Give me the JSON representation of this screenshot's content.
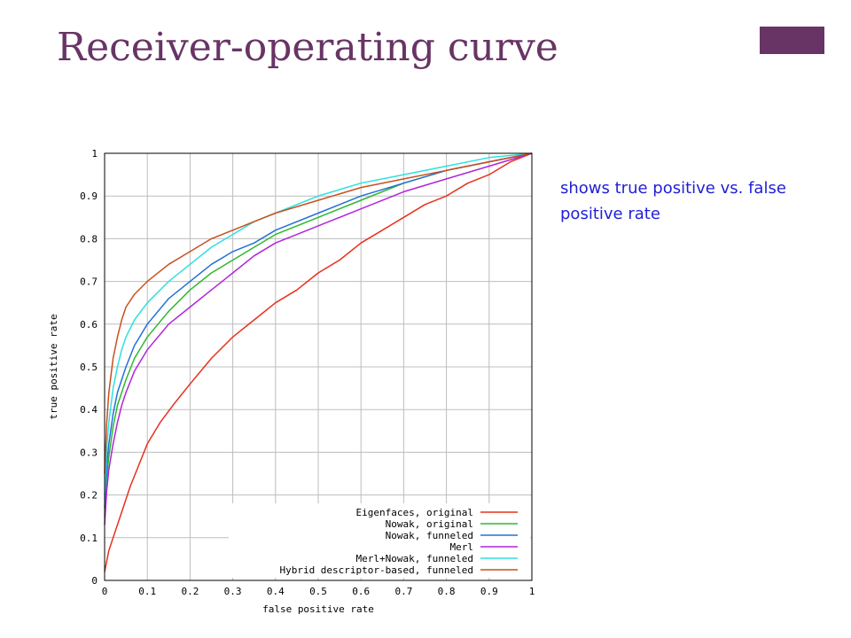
{
  "slide": {
    "title": "Receiver-operating curve",
    "caption": "shows true positive vs. false positive rate",
    "accent_color": "#683465",
    "caption_color": "#1f1fd6"
  },
  "chart_data": {
    "type": "line",
    "title": "",
    "xlabel": "false positive rate",
    "ylabel": "true positive rate",
    "xlim": [
      0,
      1
    ],
    "ylim": [
      0,
      1
    ],
    "grid": true,
    "legend_position": "bottom-right",
    "x_ticks": [
      "0",
      "0.1",
      "0.2",
      "0.3",
      "0.4",
      "0.5",
      "0.6",
      "0.7",
      "0.8",
      "0.9",
      "1"
    ],
    "y_ticks": [
      "0",
      "0.1",
      "0.2",
      "0.3",
      "0.4",
      "0.5",
      "0.6",
      "0.7",
      "0.8",
      "0.9",
      "1"
    ],
    "series": [
      {
        "name": "Eigenfaces, original",
        "color": "#e8301c",
        "points": [
          [
            0,
            0.02
          ],
          [
            0.01,
            0.07
          ],
          [
            0.02,
            0.1
          ],
          [
            0.04,
            0.16
          ],
          [
            0.06,
            0.22
          ],
          [
            0.08,
            0.27
          ],
          [
            0.1,
            0.32
          ],
          [
            0.13,
            0.37
          ],
          [
            0.16,
            0.41
          ],
          [
            0.2,
            0.46
          ],
          [
            0.25,
            0.52
          ],
          [
            0.3,
            0.57
          ],
          [
            0.35,
            0.61
          ],
          [
            0.4,
            0.65
          ],
          [
            0.45,
            0.68
          ],
          [
            0.5,
            0.72
          ],
          [
            0.55,
            0.75
          ],
          [
            0.6,
            0.79
          ],
          [
            0.65,
            0.82
          ],
          [
            0.7,
            0.85
          ],
          [
            0.75,
            0.88
          ],
          [
            0.8,
            0.9
          ],
          [
            0.85,
            0.93
          ],
          [
            0.9,
            0.95
          ],
          [
            0.95,
            0.98
          ],
          [
            1.0,
            1.0
          ]
        ]
      },
      {
        "name": "Nowak, original",
        "color": "#2eb82e",
        "points": [
          [
            0,
            0.15
          ],
          [
            0.005,
            0.24
          ],
          [
            0.01,
            0.29
          ],
          [
            0.02,
            0.36
          ],
          [
            0.03,
            0.41
          ],
          [
            0.04,
            0.44
          ],
          [
            0.05,
            0.47
          ],
          [
            0.07,
            0.52
          ],
          [
            0.1,
            0.57
          ],
          [
            0.15,
            0.63
          ],
          [
            0.2,
            0.68
          ],
          [
            0.25,
            0.72
          ],
          [
            0.3,
            0.75
          ],
          [
            0.35,
            0.78
          ],
          [
            0.4,
            0.81
          ],
          [
            0.5,
            0.85
          ],
          [
            0.6,
            0.89
          ],
          [
            0.7,
            0.93
          ],
          [
            0.8,
            0.96
          ],
          [
            0.9,
            0.98
          ],
          [
            1.0,
            1.0
          ]
        ]
      },
      {
        "name": "Nowak, funneled",
        "color": "#2470d8",
        "points": [
          [
            0,
            0.17
          ],
          [
            0.005,
            0.27
          ],
          [
            0.01,
            0.32
          ],
          [
            0.02,
            0.39
          ],
          [
            0.03,
            0.44
          ],
          [
            0.04,
            0.47
          ],
          [
            0.05,
            0.5
          ],
          [
            0.07,
            0.55
          ],
          [
            0.1,
            0.6
          ],
          [
            0.15,
            0.66
          ],
          [
            0.2,
            0.7
          ],
          [
            0.25,
            0.74
          ],
          [
            0.3,
            0.77
          ],
          [
            0.35,
            0.79
          ],
          [
            0.4,
            0.82
          ],
          [
            0.5,
            0.86
          ],
          [
            0.6,
            0.9
          ],
          [
            0.7,
            0.93
          ],
          [
            0.8,
            0.96
          ],
          [
            0.9,
            0.98
          ],
          [
            1.0,
            1.0
          ]
        ]
      },
      {
        "name": "Merl",
        "color": "#b026d8",
        "points": [
          [
            0,
            0.13
          ],
          [
            0.005,
            0.21
          ],
          [
            0.01,
            0.26
          ],
          [
            0.02,
            0.32
          ],
          [
            0.03,
            0.37
          ],
          [
            0.04,
            0.41
          ],
          [
            0.05,
            0.44
          ],
          [
            0.07,
            0.49
          ],
          [
            0.1,
            0.54
          ],
          [
            0.15,
            0.6
          ],
          [
            0.2,
            0.64
          ],
          [
            0.25,
            0.68
          ],
          [
            0.3,
            0.72
          ],
          [
            0.35,
            0.76
          ],
          [
            0.4,
            0.79
          ],
          [
            0.5,
            0.83
          ],
          [
            0.6,
            0.87
          ],
          [
            0.7,
            0.91
          ],
          [
            0.8,
            0.94
          ],
          [
            0.9,
            0.97
          ],
          [
            1.0,
            1.0
          ]
        ]
      },
      {
        "name": "Merl+Nowak, funneled",
        "color": "#2ee0e0",
        "points": [
          [
            0,
            0.2
          ],
          [
            0.005,
            0.31
          ],
          [
            0.01,
            0.37
          ],
          [
            0.02,
            0.45
          ],
          [
            0.03,
            0.5
          ],
          [
            0.04,
            0.54
          ],
          [
            0.05,
            0.57
          ],
          [
            0.07,
            0.61
          ],
          [
            0.1,
            0.65
          ],
          [
            0.15,
            0.7
          ],
          [
            0.2,
            0.74
          ],
          [
            0.25,
            0.78
          ],
          [
            0.3,
            0.81
          ],
          [
            0.35,
            0.84
          ],
          [
            0.4,
            0.86
          ],
          [
            0.5,
            0.9
          ],
          [
            0.6,
            0.93
          ],
          [
            0.7,
            0.95
          ],
          [
            0.8,
            0.97
          ],
          [
            0.9,
            0.99
          ],
          [
            1.0,
            1.0
          ]
        ]
      },
      {
        "name": "Hybrid descriptor-based, funneled",
        "color": "#c8501e",
        "points": [
          [
            0,
            0.25
          ],
          [
            0.005,
            0.37
          ],
          [
            0.01,
            0.44
          ],
          [
            0.02,
            0.52
          ],
          [
            0.03,
            0.57
          ],
          [
            0.04,
            0.61
          ],
          [
            0.05,
            0.64
          ],
          [
            0.07,
            0.67
          ],
          [
            0.1,
            0.7
          ],
          [
            0.15,
            0.74
          ],
          [
            0.2,
            0.77
          ],
          [
            0.25,
            0.8
          ],
          [
            0.3,
            0.82
          ],
          [
            0.35,
            0.84
          ],
          [
            0.4,
            0.86
          ],
          [
            0.5,
            0.89
          ],
          [
            0.6,
            0.92
          ],
          [
            0.7,
            0.94
          ],
          [
            0.8,
            0.96
          ],
          [
            0.9,
            0.98
          ],
          [
            1.0,
            1.0
          ]
        ]
      }
    ]
  }
}
